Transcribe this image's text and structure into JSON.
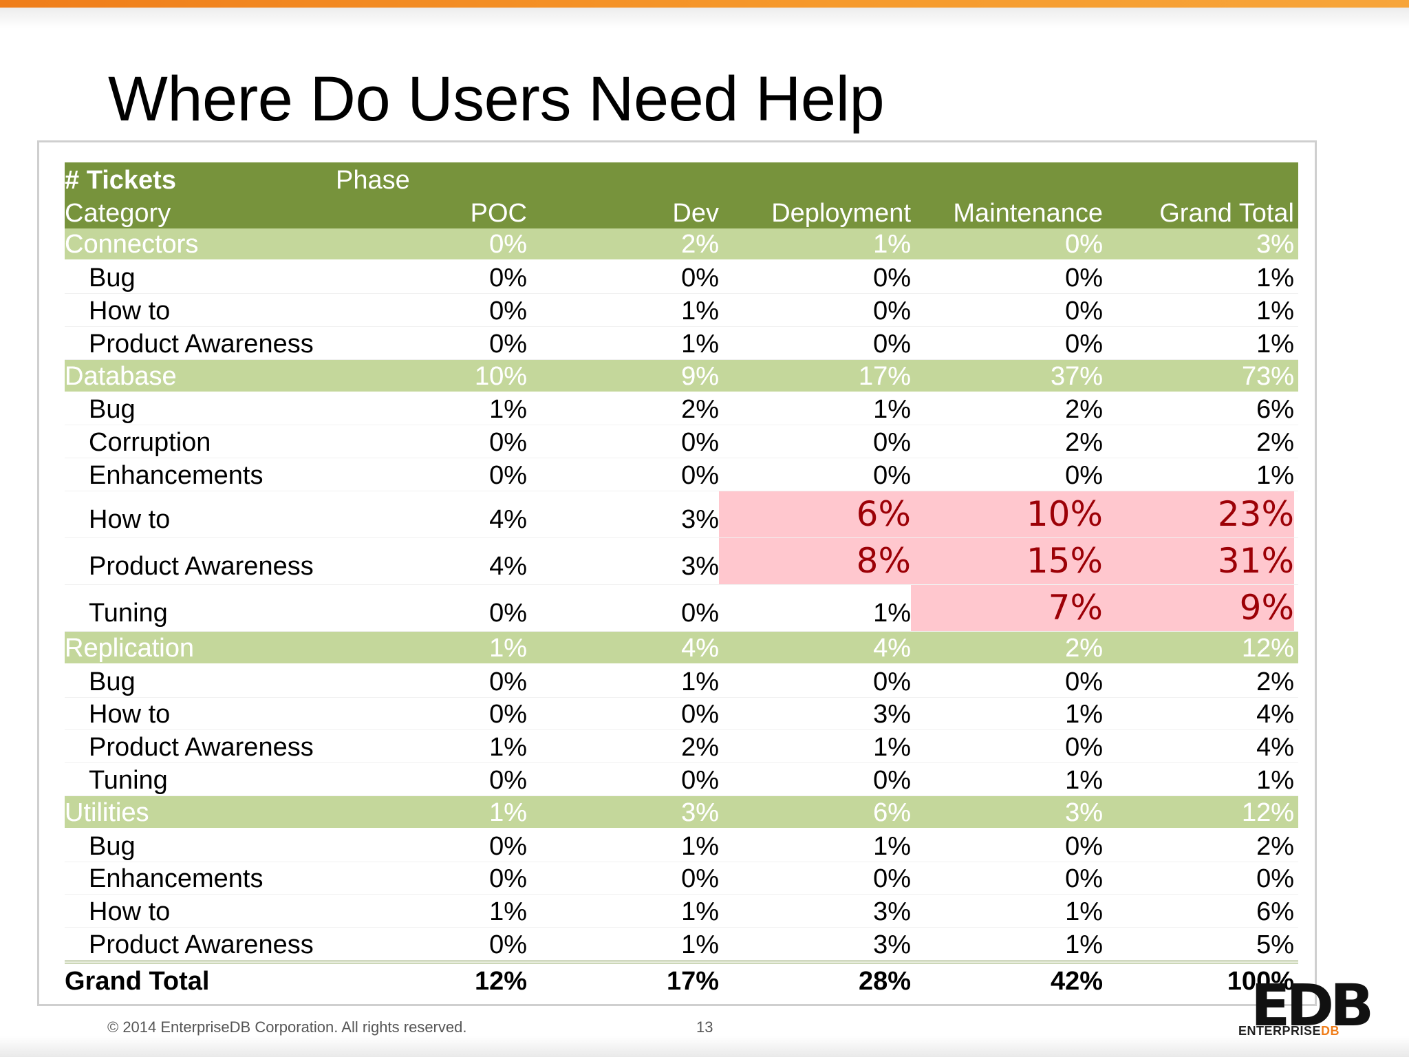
{
  "slide": {
    "title": "Where Do Users Need Help",
    "copyright": "© 2014 EnterpriseDB Corporation. All rights reserved.",
    "page_number": "13",
    "logo_mark": "EDB",
    "logo_text_1": "ENTERPRISE",
    "logo_text_2": "DB"
  },
  "table": {
    "header": {
      "tickets_label": "# Tickets",
      "phase_label": "Phase",
      "category_label": "Category",
      "columns": [
        "POC",
        "Dev",
        "Deployment",
        "Maintenance",
        "Grand Total"
      ]
    },
    "rows": [
      {
        "label": "Connectors",
        "values": [
          "0%",
          "2%",
          "1%",
          "0%",
          "3%"
        ]
      },
      {
        "label": "Bug",
        "values": [
          "0%",
          "0%",
          "0%",
          "0%",
          "1%"
        ]
      },
      {
        "label": "How to",
        "values": [
          "0%",
          "1%",
          "0%",
          "0%",
          "1%"
        ]
      },
      {
        "label": "Product Awareness",
        "values": [
          "0%",
          "1%",
          "0%",
          "0%",
          "1%"
        ]
      },
      {
        "label": "Database",
        "values": [
          "10%",
          "9%",
          "17%",
          "37%",
          "73%"
        ]
      },
      {
        "label": "Bug",
        "values": [
          "1%",
          "2%",
          "1%",
          "2%",
          "6%"
        ]
      },
      {
        "label": "Corruption",
        "values": [
          "0%",
          "0%",
          "0%",
          "2%",
          "2%"
        ]
      },
      {
        "label": "Enhancements",
        "values": [
          "0%",
          "0%",
          "0%",
          "0%",
          "1%"
        ]
      },
      {
        "label": "How to",
        "values": [
          "4%",
          "3%",
          "6%",
          "10%",
          "23%"
        ]
      },
      {
        "label": "Product Awareness",
        "values": [
          "4%",
          "3%",
          "8%",
          "15%",
          "31%"
        ]
      },
      {
        "label": "Tuning",
        "values": [
          "0%",
          "0%",
          "1%",
          "7%",
          "9%"
        ]
      },
      {
        "label": "Replication",
        "values": [
          "1%",
          "4%",
          "4%",
          "2%",
          "12%"
        ]
      },
      {
        "label": "Bug",
        "values": [
          "0%",
          "1%",
          "0%",
          "0%",
          "2%"
        ]
      },
      {
        "label": "How to",
        "values": [
          "0%",
          "0%",
          "3%",
          "1%",
          "4%"
        ]
      },
      {
        "label": "Product Awareness",
        "values": [
          "1%",
          "2%",
          "1%",
          "0%",
          "4%"
        ]
      },
      {
        "label": "Tuning",
        "values": [
          "0%",
          "0%",
          "0%",
          "1%",
          "1%"
        ]
      },
      {
        "label": "Utilities",
        "values": [
          "1%",
          "3%",
          "6%",
          "3%",
          "12%"
        ]
      },
      {
        "label": "Bug",
        "values": [
          "0%",
          "1%",
          "1%",
          "0%",
          "2%"
        ]
      },
      {
        "label": "Enhancements",
        "values": [
          "0%",
          "0%",
          "0%",
          "0%",
          "0%"
        ]
      },
      {
        "label": "How to",
        "values": [
          "1%",
          "1%",
          "3%",
          "1%",
          "6%"
        ]
      },
      {
        "label": "Product Awareness",
        "values": [
          "0%",
          "1%",
          "3%",
          "1%",
          "5%"
        ]
      }
    ],
    "grand_total": {
      "label": "Grand Total",
      "values": [
        "12%",
        "17%",
        "28%",
        "42%",
        "100%"
      ]
    },
    "colors": {
      "header_bg": "#77933c",
      "group_bg": "#c4d79b",
      "highlight_bg": "#ffc7ce",
      "highlight_text": "#9c0006"
    }
  }
}
